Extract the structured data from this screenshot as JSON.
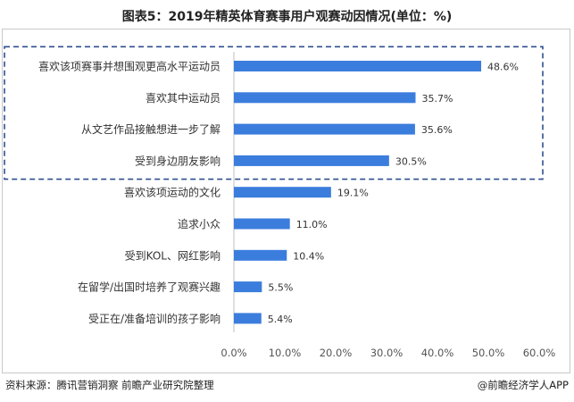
{
  "chart_data": {
    "type": "bar",
    "orientation": "horizontal",
    "title": "图表5：2019年精英体育赛事用户观赛动因情况(单位：%)",
    "categories": [
      "喜欢该项赛事并想围观更高水平运动员",
      "喜欢其中运动员",
      "从文艺作品接触想进一步了解",
      "受到身边朋友影响",
      "喜欢该项运动的文化",
      "追求小众",
      "受到KOL、网红影响",
      "在留学/出国时培养了观赛兴趣",
      "受正在/准备培训的孩子影响"
    ],
    "values": [
      48.6,
      35.7,
      35.6,
      30.5,
      19.1,
      11.0,
      10.4,
      5.5,
      5.4
    ],
    "data_labels": [
      "48.6%",
      "35.7%",
      "35.6%",
      "30.5%",
      "19.1%",
      "11.0%",
      "10.4%",
      "5.5%",
      "5.4%"
    ],
    "xlim": [
      0,
      60
    ],
    "x_ticks": [
      "0.0%",
      "10.0%",
      "20.0%",
      "30.0%",
      "40.0%",
      "50.0%",
      "60.0%"
    ],
    "highlight_count": 4,
    "grid": false,
    "bar_color": "#3b7ddd",
    "highlight_box_color": "#2f4f8f"
  },
  "footer": {
    "source": "资料来源：腾讯营销洞察 前瞻产业研究院整理",
    "brand": "@前瞻经济学人APP"
  }
}
